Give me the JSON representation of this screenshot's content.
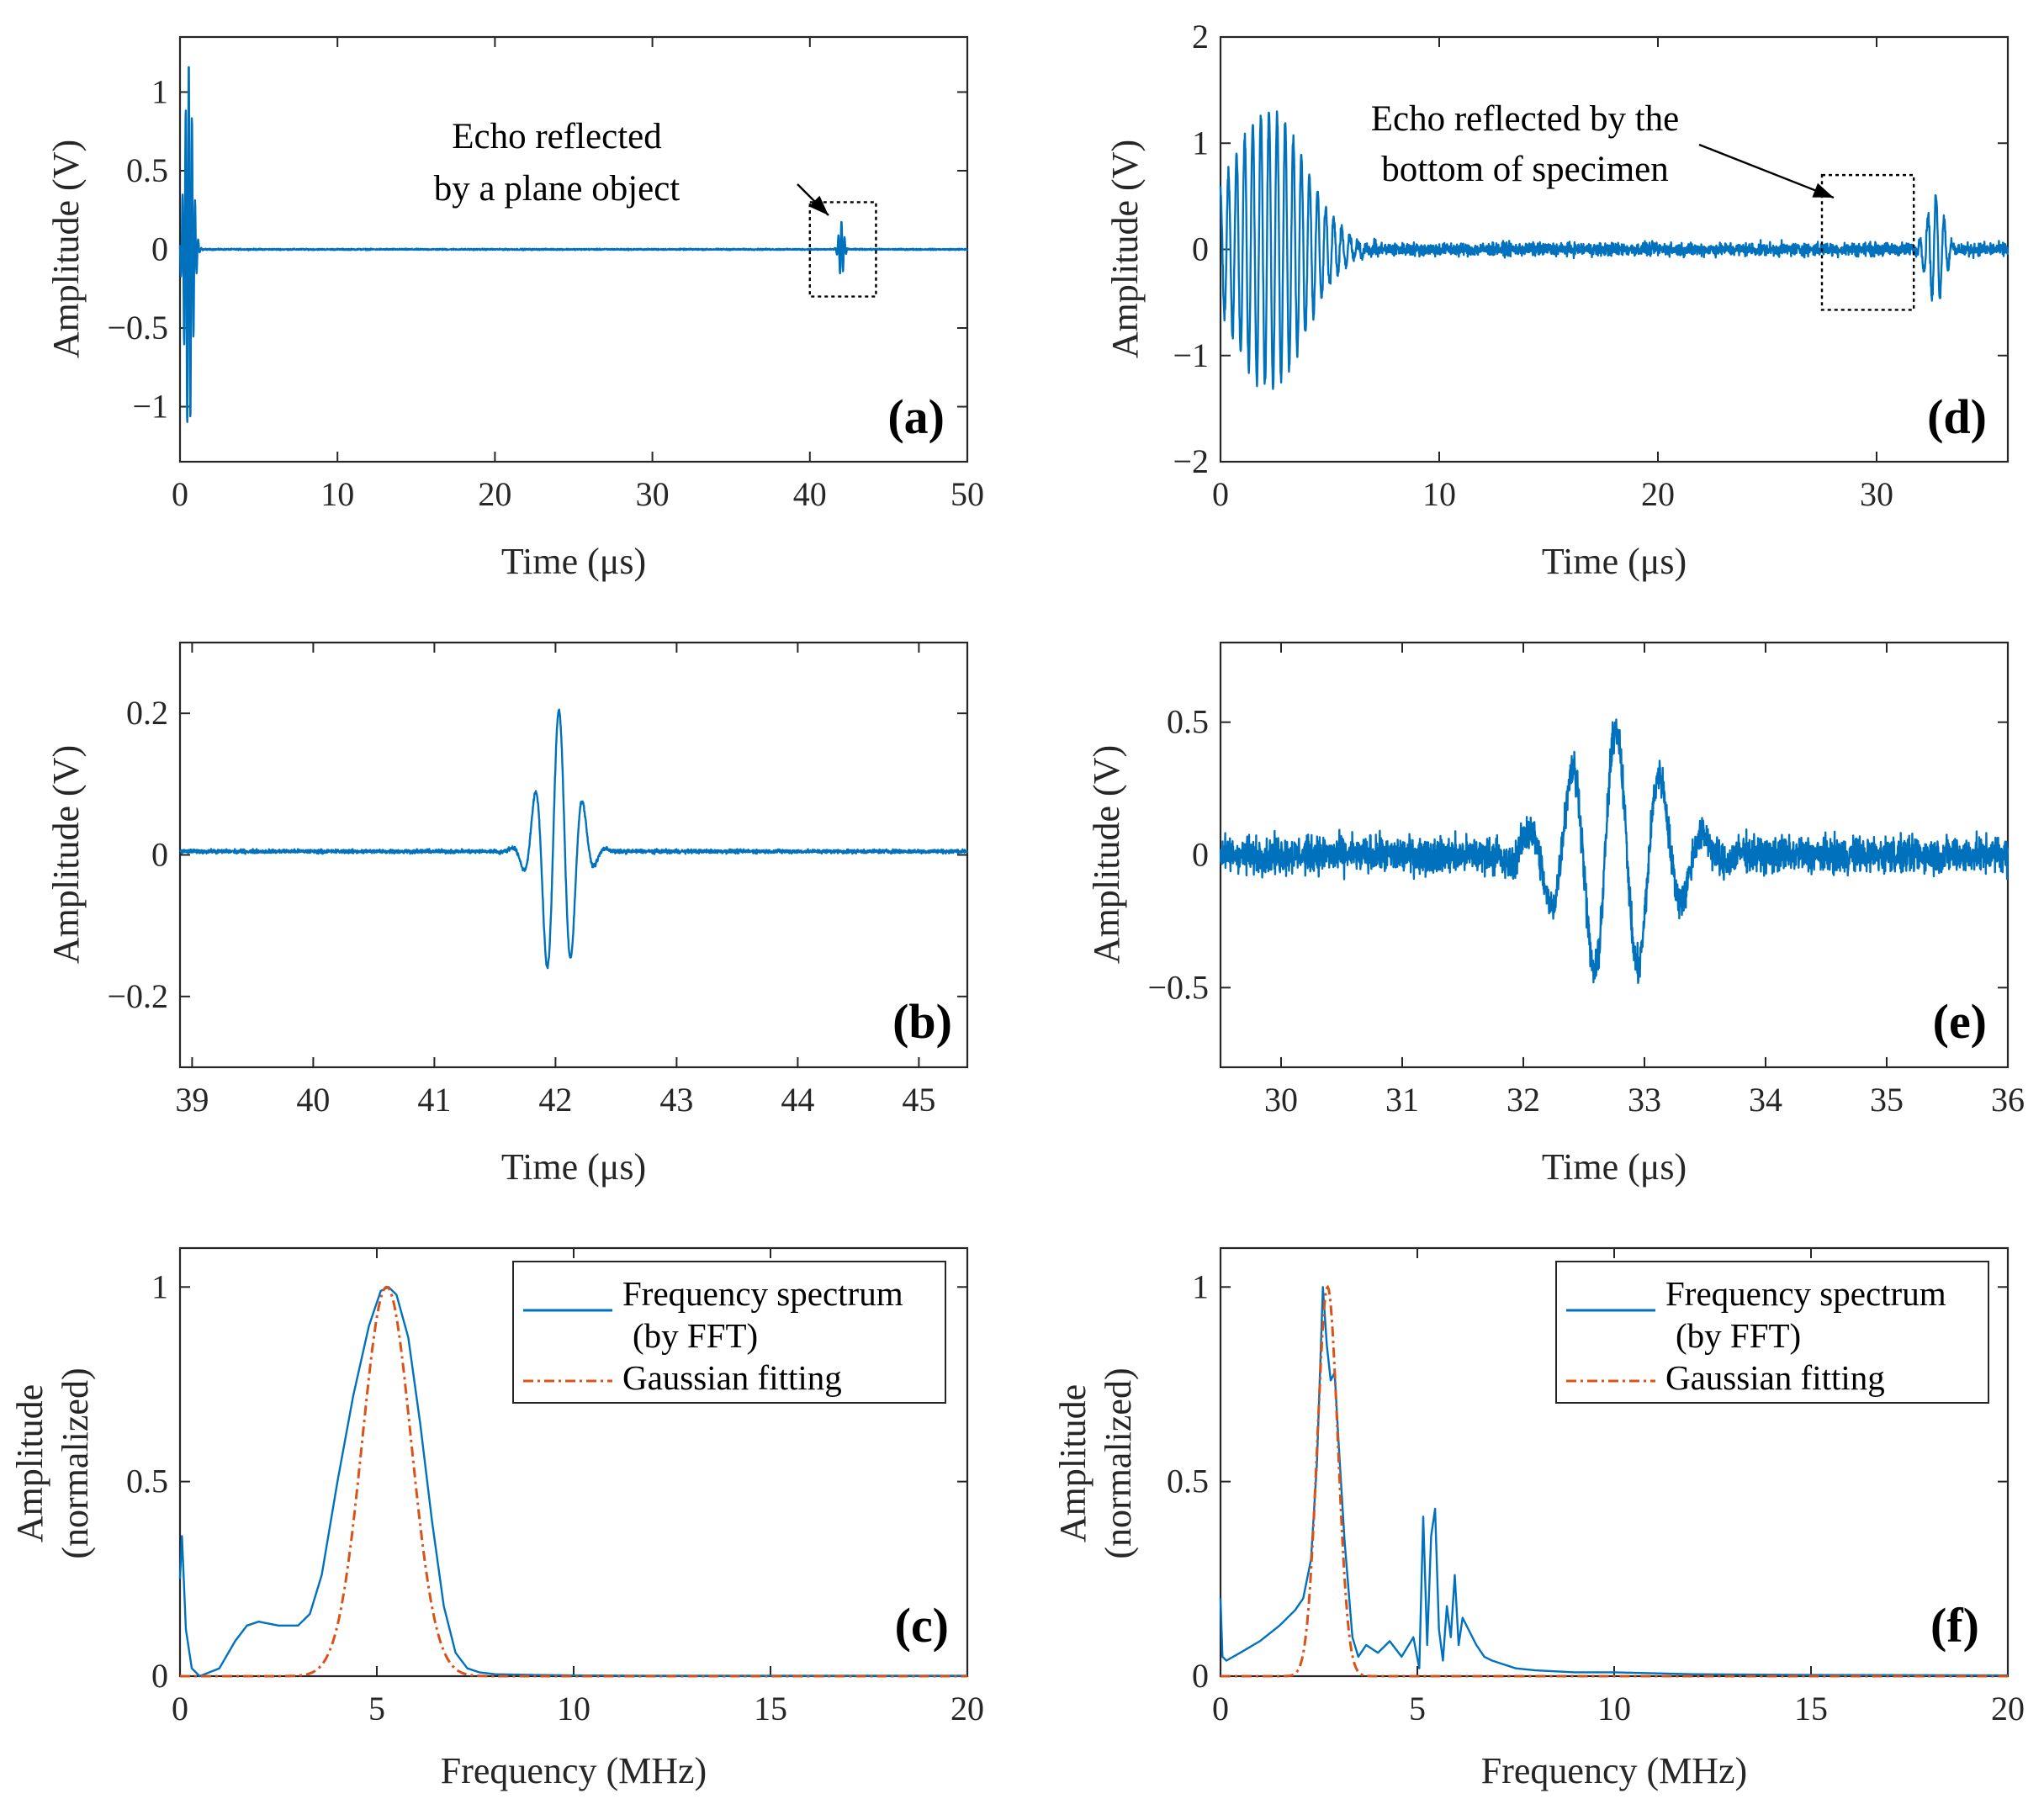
{
  "chart_data": [
    {
      "id": "a",
      "type": "line",
      "panel_label": "(a)",
      "xlabel": "Time (μs)",
      "ylabel": "Amplitude (V)",
      "xlim": [
        0,
        50
      ],
      "ylim": [
        -1.35,
        1.35
      ],
      "xticks": [
        0,
        10,
        20,
        30,
        40,
        50
      ],
      "xticklabels": [
        "0",
        "10",
        "20",
        "30",
        "40",
        "50"
      ],
      "yticks": [
        -1,
        -0.5,
        0,
        0.5,
        1
      ],
      "yticklabels": [
        "−1",
        "−0.5",
        "0",
        "0.5",
        "1"
      ],
      "grid": false,
      "series": [
        {
          "color": "#0072BD",
          "bursts": [
            {
              "center": 0.55,
              "amplitude": 1.2,
              "frequency": 5.0,
              "width": 0.35,
              "start": 0.0
            },
            {
              "center": 42.0,
              "amplitude": 0.18,
              "frequency": 5.0,
              "width": 0.22,
              "start": 41.4
            }
          ],
          "noise": 0.006
        }
      ],
      "annotation": {
        "lines": [
          "Echo reflected",
          "by a plane object"
        ],
        "box_x": [
          40,
          44.2
        ],
        "box_y": [
          -0.3,
          0.3
        ]
      }
    },
    {
      "id": "d",
      "type": "line",
      "panel_label": "(d)",
      "xlabel": "Time (μs)",
      "ylabel": "Amplitude (V)",
      "xlim": [
        0,
        36
      ],
      "ylim": [
        -2,
        2
      ],
      "xticks": [
        0,
        10,
        20,
        30
      ],
      "xticklabels": [
        "0",
        "10",
        "20",
        "30"
      ],
      "yticks": [
        -2,
        -1,
        0,
        1,
        2
      ],
      "yticklabels": [
        "−2",
        "−1",
        "0",
        "1",
        "2"
      ],
      "grid": false,
      "series": [
        {
          "color": "#0072BD",
          "bursts": [
            {
              "center": 2.2,
              "amplitude": 1.3,
              "frequency": 2.7,
              "width": 2.4,
              "start": 0.0
            },
            {
              "center": 32.7,
              "amplitude": 0.5,
              "frequency": 2.7,
              "width": 0.55,
              "start": 31.5
            }
          ],
          "noise": 0.09
        }
      ],
      "annotation": {
        "lines": [
          "Echo reflected by the",
          "bottom of specimen"
        ],
        "box_x": [
          27.5,
          31.7
        ],
        "box_y": [
          -0.57,
          0.7
        ]
      }
    },
    {
      "id": "b",
      "type": "line",
      "panel_label": "(b)",
      "xlabel": "Time (μs)",
      "ylabel": "Amplitude (V)",
      "xlim": [
        38.9,
        45.4
      ],
      "ylim": [
        -0.3,
        0.3
      ],
      "xticks": [
        39,
        40,
        41,
        42,
        43,
        44,
        45
      ],
      "xticklabels": [
        "39",
        "40",
        "41",
        "42",
        "43",
        "44",
        "45"
      ],
      "yticks": [
        -0.2,
        0,
        0.2
      ],
      "yticklabels": [
        "−0.2",
        "0",
        "0.2"
      ],
      "grid": false,
      "series": [
        {
          "color": "#0072BD",
          "bursts": [
            {
              "center": 42.02,
              "amplitude": 0.2,
              "frequency": 5.0,
              "width": 0.2,
              "start": 41.5
            }
          ],
          "noise": 0.004,
          "offset": 0.005
        }
      ]
    },
    {
      "id": "e",
      "type": "line",
      "panel_label": "(e)",
      "xlabel": "Time (μs)",
      "ylabel": "Amplitude (V)",
      "xlim": [
        29.5,
        36
      ],
      "ylim": [
        -0.8,
        0.8
      ],
      "xticks": [
        30,
        31,
        32,
        33,
        34,
        35,
        36
      ],
      "xticklabels": [
        "30",
        "31",
        "32",
        "33",
        "34",
        "35",
        "36"
      ],
      "yticks": [
        -0.5,
        0,
        0.5
      ],
      "yticklabels": [
        "−0.5",
        "0",
        "0.5"
      ],
      "grid": false,
      "series": [
        {
          "color": "#0072BD",
          "bursts": [
            {
              "center": 32.75,
              "amplitude": 0.48,
              "frequency": 2.75,
              "width": 0.55,
              "start": 31.8
            }
          ],
          "noise": 0.1
        }
      ]
    },
    {
      "id": "c",
      "type": "line",
      "panel_label": "(c)",
      "xlabel": "Frequency (MHz)",
      "ylabel": [
        "Amplitude",
        "(normalized)"
      ],
      "xlim": [
        0,
        20
      ],
      "ylim": [
        0,
        1.1
      ],
      "xticks": [
        0,
        5,
        10,
        15,
        20
      ],
      "xticklabels": [
        "0",
        "5",
        "10",
        "15",
        "20"
      ],
      "yticks": [
        0,
        0.5,
        1
      ],
      "yticklabels": [
        "0",
        "0.5",
        "1"
      ],
      "grid": false,
      "legend": {
        "location": "top-right",
        "entries": [
          "Frequency spectrum",
          "(by FFT)",
          "Gaussian fitting"
        ]
      },
      "series": [
        {
          "style": "solid",
          "color": "#0072BD",
          "x": [
            0,
            0.05,
            0.15,
            0.3,
            0.5,
            1.0,
            1.4,
            1.7,
            2.0,
            2.5,
            3.0,
            3.3,
            3.6,
            4.0,
            4.4,
            4.8,
            5.1,
            5.3,
            5.5,
            5.8,
            6.1,
            6.4,
            6.7,
            7.0,
            7.3,
            7.6,
            8.0,
            9.0,
            10,
            12,
            15,
            20
          ],
          "y": [
            0.25,
            0.36,
            0.12,
            0.02,
            0.0,
            0.02,
            0.09,
            0.13,
            0.14,
            0.13,
            0.13,
            0.16,
            0.26,
            0.5,
            0.72,
            0.9,
            0.99,
            1.0,
            0.98,
            0.87,
            0.65,
            0.4,
            0.18,
            0.06,
            0.02,
            0.01,
            0.005,
            0.003,
            0.002,
            0.001,
            0.001,
            0.001
          ]
        },
        {
          "style": "dash-dot",
          "color": "#D95319",
          "gaussian": {
            "mu": 5.25,
            "sigma": 0.62,
            "amplitude": 1.0
          }
        }
      ]
    },
    {
      "id": "f",
      "type": "line",
      "panel_label": "(f)",
      "xlabel": "Frequency (MHz)",
      "ylabel": [
        "Amplitude",
        "(normalized)"
      ],
      "xlim": [
        0,
        20
      ],
      "ylim": [
        0,
        1.1
      ],
      "xticks": [
        0,
        5,
        10,
        15,
        20
      ],
      "xticklabels": [
        "0",
        "5",
        "10",
        "15",
        "20"
      ],
      "yticks": [
        0,
        0.5,
        1
      ],
      "yticklabels": [
        "0",
        "0.5",
        "1"
      ],
      "grid": false,
      "legend": {
        "location": "top-right",
        "entries": [
          "Frequency spectrum",
          "(by FFT)",
          "Gaussian fitting"
        ]
      },
      "series": [
        {
          "style": "solid",
          "color": "#0072BD",
          "x": [
            0,
            0.05,
            0.15,
            0.5,
            1.0,
            1.5,
            1.9,
            2.1,
            2.3,
            2.45,
            2.6,
            2.7,
            2.8,
            2.9,
            3.0,
            3.15,
            3.35,
            3.5,
            3.7,
            4.0,
            4.3,
            4.6,
            4.9,
            5.05,
            5.15,
            5.25,
            5.35,
            5.45,
            5.55,
            5.65,
            5.75,
            5.85,
            5.95,
            6.05,
            6.15,
            6.3,
            6.5,
            6.7,
            6.9,
            7.2,
            7.5,
            8,
            9,
            10,
            12,
            15,
            20
          ],
          "y": [
            0.2,
            0.05,
            0.04,
            0.06,
            0.09,
            0.13,
            0.17,
            0.2,
            0.3,
            0.55,
            1.0,
            0.85,
            0.76,
            0.78,
            0.6,
            0.35,
            0.1,
            0.05,
            0.08,
            0.06,
            0.09,
            0.05,
            0.1,
            0.02,
            0.41,
            0.08,
            0.36,
            0.43,
            0.12,
            0.04,
            0.18,
            0.1,
            0.26,
            0.08,
            0.15,
            0.12,
            0.08,
            0.05,
            0.04,
            0.03,
            0.02,
            0.015,
            0.01,
            0.01,
            0.005,
            0.003,
            0.002
          ]
        },
        {
          "style": "dash-dot",
          "color": "#D95319",
          "gaussian": {
            "mu": 2.72,
            "sigma": 0.26,
            "amplitude": 1.0
          }
        }
      ]
    }
  ]
}
